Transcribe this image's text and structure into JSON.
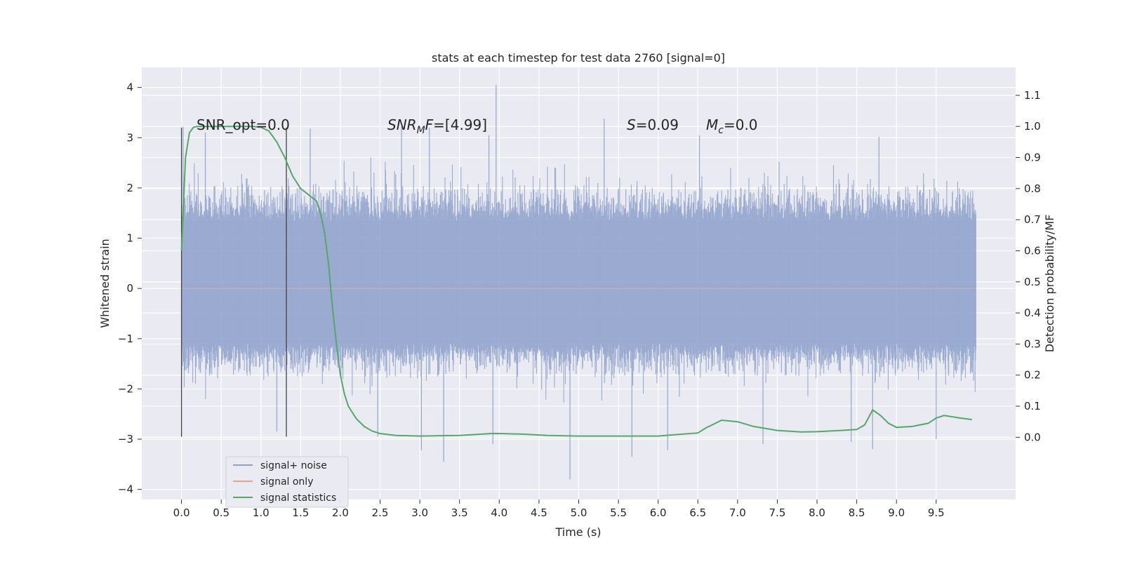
{
  "chart_data": {
    "type": "line",
    "title": "stats at each timestep for test data 2760 [signal=0]",
    "xlabel": "Time (s)",
    "ylabel": "Whitened strain",
    "ylabel_right": "Detection probability/MF",
    "xlim": [
      -0.5,
      10.5
    ],
    "ylim": [
      -4.2,
      4.4
    ],
    "ylim_right": [
      -0.2,
      1.19
    ],
    "x_ticks": [
      "0.0",
      "0.5",
      "1.0",
      "1.5",
      "2.0",
      "2.5",
      "3.0",
      "3.5",
      "4.0",
      "4.5",
      "5.0",
      "5.5",
      "6.0",
      "6.5",
      "7.0",
      "7.5",
      "8.0",
      "8.5",
      "9.0",
      "9.5"
    ],
    "x_tick_values": [
      0.0,
      0.5,
      1.0,
      1.5,
      2.0,
      2.5,
      3.0,
      3.5,
      4.0,
      4.5,
      5.0,
      5.5,
      6.0,
      6.5,
      7.0,
      7.5,
      8.0,
      8.5,
      9.0,
      9.5
    ],
    "y_ticks": [
      "−4",
      "−3",
      "−2",
      "−1",
      "0",
      "1",
      "2",
      "3",
      "4"
    ],
    "y_tick_values": [
      -4,
      -3,
      -2,
      -1,
      0,
      1,
      2,
      3,
      4
    ],
    "y_ticks_right": [
      "0.0",
      "0.1",
      "0.2",
      "0.3",
      "0.4",
      "0.5",
      "0.6",
      "0.7",
      "0.8",
      "0.9",
      "1.0",
      "1.1"
    ],
    "y_tick_values_right": [
      0.0,
      0.1,
      0.2,
      0.3,
      0.4,
      0.5,
      0.6,
      0.7,
      0.8,
      0.9,
      1.0,
      1.1
    ],
    "grid": true,
    "legend_placement": "lower-left",
    "legend": [
      {
        "label": "signal+ noise",
        "color": "#8da0cb"
      },
      {
        "label": "signal only",
        "color": "#e8a48a"
      },
      {
        "label": "signal statistics",
        "color": "#55a868"
      }
    ],
    "annotations": [
      {
        "text": "SNR_opt=0.0",
        "x": 0.2,
        "y": 3.2
      },
      {
        "text_parts": [
          "SNR",
          "M",
          "F",
          "=[4.99]"
        ],
        "x": 2.6,
        "y": 3.2
      },
      {
        "text_parts": [
          "S",
          "=0.09"
        ],
        "x": 5.6,
        "y": 3.2
      },
      {
        "text_parts": [
          "M",
          "c",
          "=0.0"
        ],
        "x": 6.6,
        "y": 3.2
      }
    ],
    "vlines": [
      {
        "x": 0.0,
        "ymin": -2.95,
        "ymax": 3.2
      },
      {
        "x": 1.32,
        "ymin": -2.95,
        "ymax": 3.2
      }
    ],
    "series": [
      {
        "name": "signal+ noise",
        "axis": "left",
        "color": "#8da0cb",
        "x_range": [
          0.0,
          10.0
        ],
        "samples": 2048,
        "core_band": [
          -1.1,
          1.35
        ],
        "typical_band": [
          -1.65,
          1.95
        ],
        "peaks": [
          {
            "x": 3.96,
            "y": 4.05
          },
          {
            "x": 0.02,
            "y": 3.22
          },
          {
            "x": 0.3,
            "y": 3.1
          },
          {
            "x": 1.62,
            "y": 3.18
          },
          {
            "x": 2.77,
            "y": 3.22
          },
          {
            "x": 3.12,
            "y": 3.2
          },
          {
            "x": 3.87,
            "y": 3.05
          },
          {
            "x": 5.32,
            "y": 3.38
          },
          {
            "x": 6.52,
            "y": 3.05
          },
          {
            "x": 8.78,
            "y": 3.02
          },
          {
            "x": 3.02,
            "y": -3.22
          },
          {
            "x": 3.3,
            "y": -3.45
          },
          {
            "x": 3.92,
            "y": -3.1
          },
          {
            "x": 4.89,
            "y": -3.8
          },
          {
            "x": 5.67,
            "y": -3.35
          },
          {
            "x": 6.12,
            "y": -3.22
          },
          {
            "x": 7.32,
            "y": -3.1
          },
          {
            "x": 8.43,
            "y": -3.05
          },
          {
            "x": 8.7,
            "y": -3.2
          },
          {
            "x": 9.5,
            "y": -3.0
          },
          {
            "x": 1.2,
            "y": -2.85
          },
          {
            "x": 2.47,
            "y": -2.95
          }
        ]
      },
      {
        "name": "signal only",
        "axis": "left",
        "color": "#e8a48a",
        "x": [
          0.0,
          10.0
        ],
        "y": [
          0.0,
          0.0
        ]
      },
      {
        "name": "signal statistics",
        "axis": "right",
        "color": "#55a868",
        "x": [
          0.0,
          0.05,
          0.1,
          0.15,
          0.2,
          0.3,
          0.5,
          0.7,
          0.9,
          1.0,
          1.1,
          1.2,
          1.3,
          1.4,
          1.5,
          1.6,
          1.7,
          1.75,
          1.8,
          1.85,
          1.9,
          1.95,
          2.0,
          2.05,
          2.1,
          2.2,
          2.3,
          2.4,
          2.5,
          2.7,
          3.0,
          3.5,
          3.9,
          4.0,
          4.3,
          4.6,
          5.0,
          5.5,
          5.8,
          6.0,
          6.2,
          6.5,
          6.6,
          6.8,
          7.0,
          7.2,
          7.5,
          7.8,
          8.0,
          8.3,
          8.5,
          8.6,
          8.7,
          8.8,
          8.9,
          9.0,
          9.2,
          9.4,
          9.5,
          9.6,
          9.8,
          9.95
        ],
        "y": [
          0.6,
          0.9,
          0.98,
          0.997,
          1.0,
          1.0,
          1.0,
          1.0,
          1.0,
          0.997,
          0.985,
          0.95,
          0.9,
          0.84,
          0.8,
          0.78,
          0.76,
          0.72,
          0.66,
          0.56,
          0.42,
          0.3,
          0.2,
          0.14,
          0.1,
          0.06,
          0.035,
          0.02,
          0.012,
          0.006,
          0.004,
          0.006,
          0.012,
          0.012,
          0.01,
          0.006,
          0.004,
          0.004,
          0.004,
          0.004,
          0.008,
          0.014,
          0.03,
          0.055,
          0.05,
          0.035,
          0.022,
          0.017,
          0.018,
          0.022,
          0.025,
          0.04,
          0.088,
          0.07,
          0.045,
          0.032,
          0.035,
          0.045,
          0.062,
          0.07,
          0.062,
          0.057
        ]
      }
    ]
  }
}
